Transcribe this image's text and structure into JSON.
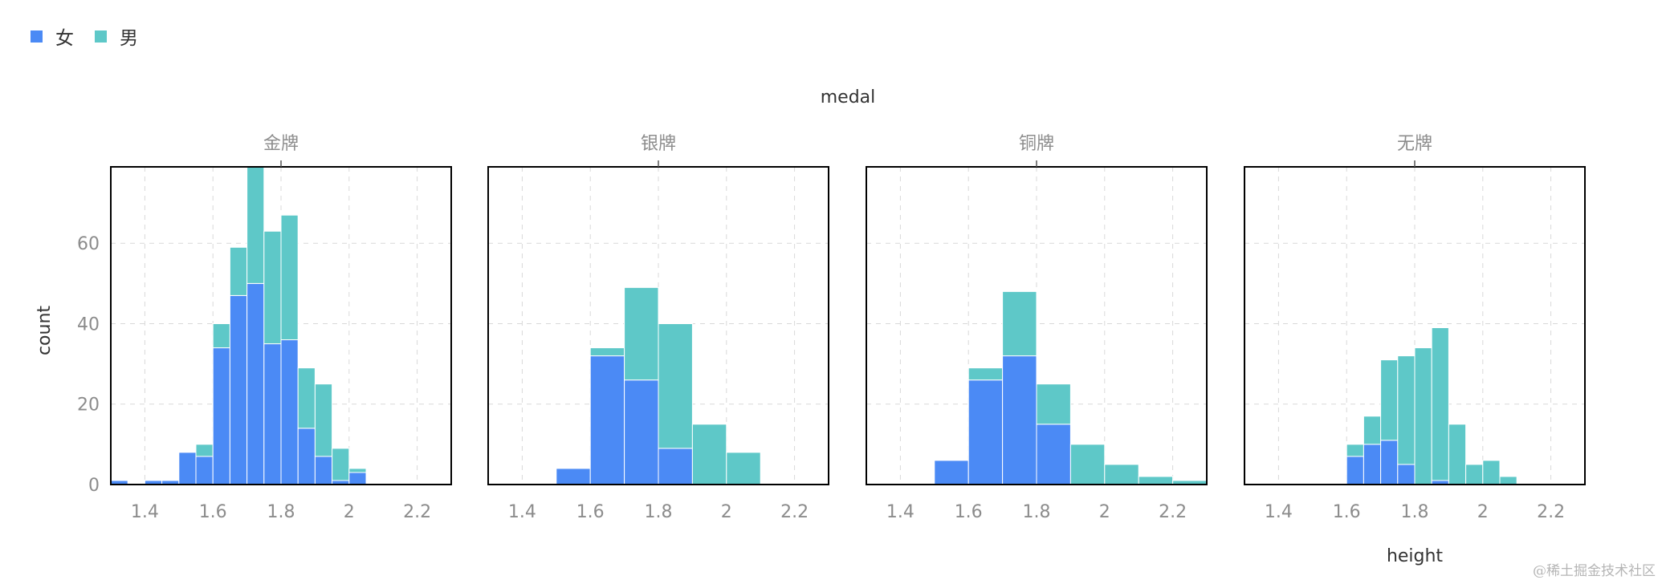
{
  "legend": {
    "items": [
      {
        "label": "女",
        "color": "#4b8af5"
      },
      {
        "label": "男",
        "color": "#5ec8c8"
      }
    ]
  },
  "watermark": "@稀土掘金技术社区",
  "chart_data": {
    "type": "bar",
    "stacked": true,
    "facet_title": "medal",
    "xlabel": "height",
    "ylabel": "count",
    "xlim": [
      1.3,
      2.3
    ],
    "ylim": [
      0,
      79
    ],
    "x_ticks": [
      {
        "value": 1.4,
        "label": "1.4"
      },
      {
        "value": 1.6,
        "label": "1.6"
      },
      {
        "value": 1.8,
        "label": "1.8"
      },
      {
        "value": 2.0,
        "label": "2"
      },
      {
        "value": 2.2,
        "label": "2.2"
      }
    ],
    "y_ticks": [
      {
        "value": 0,
        "label": "0"
      },
      {
        "value": 20,
        "label": "20"
      },
      {
        "value": 40,
        "label": "40"
      },
      {
        "value": 60,
        "label": "60"
      }
    ],
    "grid": true,
    "series_colors": {
      "女": "#4b8af5",
      "男": "#5ec8c8"
    },
    "panels": [
      {
        "title": "金牌",
        "bin_width": 0.05,
        "bins": [
          {
            "x0": 1.3,
            "female": 1,
            "male": 0
          },
          {
            "x0": 1.4,
            "female": 1,
            "male": 0
          },
          {
            "x0": 1.45,
            "female": 1,
            "male": 0
          },
          {
            "x0": 1.5,
            "female": 8,
            "male": 0
          },
          {
            "x0": 1.55,
            "female": 7,
            "male": 3
          },
          {
            "x0": 1.6,
            "female": 34,
            "male": 6
          },
          {
            "x0": 1.65,
            "female": 47,
            "male": 12
          },
          {
            "x0": 1.7,
            "female": 50,
            "male": 29
          },
          {
            "x0": 1.75,
            "female": 35,
            "male": 28
          },
          {
            "x0": 1.8,
            "female": 36,
            "male": 31
          },
          {
            "x0": 1.85,
            "female": 14,
            "male": 15
          },
          {
            "x0": 1.9,
            "female": 7,
            "male": 18
          },
          {
            "x0": 1.95,
            "female": 1,
            "male": 8
          },
          {
            "x0": 2.0,
            "female": 3,
            "male": 1
          }
        ]
      },
      {
        "title": "银牌",
        "bin_width": 0.1,
        "bins": [
          {
            "x0": 1.5,
            "female": 4,
            "male": 0
          },
          {
            "x0": 1.6,
            "female": 32,
            "male": 2
          },
          {
            "x0": 1.7,
            "female": 26,
            "male": 23
          },
          {
            "x0": 1.8,
            "female": 9,
            "male": 31
          },
          {
            "x0": 1.9,
            "female": 0,
            "male": 15
          },
          {
            "x0": 2.0,
            "female": 0,
            "male": 8
          }
        ]
      },
      {
        "title": "铜牌",
        "bin_width": 0.1,
        "bins": [
          {
            "x0": 1.5,
            "female": 6,
            "male": 0
          },
          {
            "x0": 1.6,
            "female": 26,
            "male": 3
          },
          {
            "x0": 1.7,
            "female": 32,
            "male": 16
          },
          {
            "x0": 1.8,
            "female": 15,
            "male": 10
          },
          {
            "x0": 1.9,
            "female": 0,
            "male": 10
          },
          {
            "x0": 2.0,
            "female": 0,
            "male": 5
          },
          {
            "x0": 2.1,
            "female": 0,
            "male": 2
          },
          {
            "x0": 2.2,
            "female": 0,
            "male": 1
          }
        ]
      },
      {
        "title": "无牌",
        "bin_width": 0.05,
        "bins": [
          {
            "x0": 1.6,
            "female": 7,
            "male": 3
          },
          {
            "x0": 1.65,
            "female": 10,
            "male": 7
          },
          {
            "x0": 1.7,
            "female": 11,
            "male": 20
          },
          {
            "x0": 1.75,
            "female": 5,
            "male": 27
          },
          {
            "x0": 1.8,
            "female": 0,
            "male": 34
          },
          {
            "x0": 1.85,
            "female": 1,
            "male": 38
          },
          {
            "x0": 1.9,
            "female": 0,
            "male": 15
          },
          {
            "x0": 1.95,
            "female": 0,
            "male": 5
          },
          {
            "x0": 2.0,
            "female": 0,
            "male": 6
          },
          {
            "x0": 2.05,
            "female": 0,
            "male": 2
          }
        ]
      }
    ]
  }
}
